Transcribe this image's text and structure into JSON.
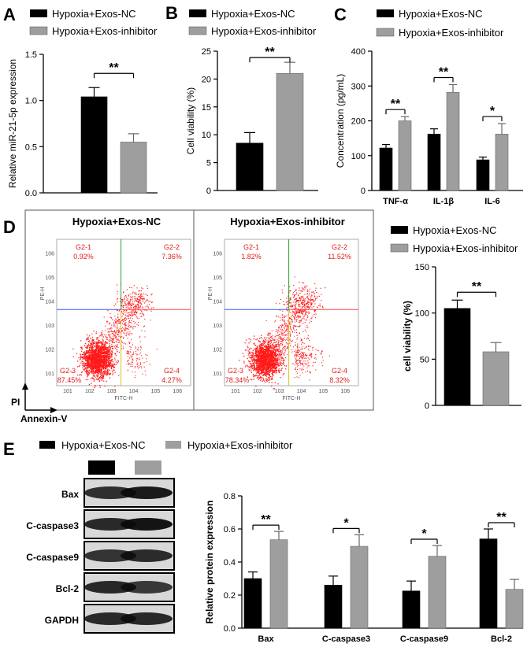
{
  "colors": {
    "nc": "#000000",
    "inhibitor": "#9e9e9e",
    "dot": "#ff1a1a",
    "gate_green": "#2ca02c",
    "gate_blue": "#3355ff",
    "gate_red": "#ff4444",
    "gate_yellow": "#d9c02a"
  },
  "panels": {
    "a": "A",
    "b": "B",
    "c": "C",
    "d": "D",
    "e": "E"
  },
  "legend": {
    "nc": "Hypoxia+Exos-NC",
    "inhibitor": "Hypoxia+Exos-inhibitor"
  },
  "flow": {
    "nc": {
      "title": "Hypoxia+Exos-NC",
      "q1": "G2-1",
      "q1v": "0.92%",
      "q2": "G2-2",
      "q2v": "7.36%",
      "q3": "G2-3",
      "q3v": "87.45%",
      "q4": "G2-4",
      "q4v": "4.27%"
    },
    "inhibitor": {
      "title": "Hypoxia+Exos-inhibitor",
      "q1": "G2-1",
      "q1v": "1.82%",
      "q2": "G2-2",
      "q2v": "11.52%",
      "q3": "G2-3",
      "q3v": "78.34%",
      "q4": "G2-4",
      "q4v": "8.32%"
    },
    "ylab": "PE-H",
    "xlab": "FITC-H",
    "ticks": [
      "10",
      "1",
      "2",
      "3",
      "4",
      "5",
      "6"
    ],
    "axis_pi": "PI",
    "axis_annexin": "Annexin-V"
  },
  "blot": {
    "labels": [
      "Bax",
      "C-caspase3",
      "C-caspase9",
      "Bcl-2",
      "GAPDH"
    ]
  },
  "chart_data": [
    {
      "id": "A",
      "type": "bar",
      "title": "",
      "xlabel": "",
      "ylabel": "Relative miR-21-5p expression",
      "ylim": [
        0,
        1.5
      ],
      "yticks": [
        "0.0",
        "0.5",
        "1.0",
        "1.5"
      ],
      "series": [
        {
          "name": "Hypoxia+Exos-NC",
          "values": [
            1.04
          ],
          "errors": [
            0.1
          ]
        },
        {
          "name": "Hypoxia+Exos-inhibitor",
          "values": [
            0.55
          ],
          "errors": [
            0.09
          ]
        }
      ],
      "significance": [
        "**"
      ]
    },
    {
      "id": "B",
      "type": "bar",
      "title": "",
      "xlabel": "",
      "ylabel": "Cell viability (%)",
      "ylim": [
        0,
        25
      ],
      "yticks": [
        "0",
        "5",
        "10",
        "15",
        "20",
        "25"
      ],
      "series": [
        {
          "name": "Hypoxia+Exos-NC",
          "values": [
            8.5
          ],
          "errors": [
            1.9
          ]
        },
        {
          "name": "Hypoxia+Exos-inhibitor",
          "values": [
            21.0
          ],
          "errors": [
            2.0
          ]
        }
      ],
      "significance": [
        "**"
      ]
    },
    {
      "id": "C",
      "type": "bar",
      "title": "",
      "xlabel": "",
      "ylabel": "Concentration (pg/mL)",
      "ylim": [
        0,
        400
      ],
      "yticks": [
        "0",
        "100",
        "200",
        "300",
        "400"
      ],
      "categories": [
        "TNF-α",
        "IL-1β",
        "IL-6"
      ],
      "series": [
        {
          "name": "Hypoxia+Exos-NC",
          "values": [
            122,
            162,
            88
          ],
          "errors": [
            10,
            15,
            8
          ]
        },
        {
          "name": "Hypoxia+Exos-inhibitor",
          "values": [
            200,
            282,
            162
          ],
          "errors": [
            12,
            22,
            30
          ]
        }
      ],
      "significance": [
        "**",
        "**",
        "*"
      ]
    },
    {
      "id": "D",
      "type": "bar",
      "title": "",
      "xlabel": "",
      "ylabel": "cell viability (%)",
      "ylim": [
        0,
        150
      ],
      "yticks": [
        "0",
        "50",
        "100",
        "150"
      ],
      "series": [
        {
          "name": "Hypoxia+Exos-NC",
          "values": [
            105
          ],
          "errors": [
            9
          ]
        },
        {
          "name": "Hypoxia+Exos-inhibitor",
          "values": [
            58
          ],
          "errors": [
            10
          ]
        }
      ],
      "significance": [
        "**"
      ]
    },
    {
      "id": "E",
      "type": "bar",
      "title": "",
      "xlabel": "",
      "ylabel": "Relative protein expression",
      "ylim": [
        0,
        0.8
      ],
      "yticks": [
        "0.0",
        "0.2",
        "0.4",
        "0.6",
        "0.8"
      ],
      "categories": [
        "Bax",
        "C-caspase3",
        "C-caspase9",
        "Bcl-2"
      ],
      "series": [
        {
          "name": "Hypoxia+Exos-NC",
          "values": [
            0.3,
            0.26,
            0.225,
            0.54
          ],
          "errors": [
            0.04,
            0.055,
            0.06,
            0.06
          ]
        },
        {
          "name": "Hypoxia+Exos-inhibitor",
          "values": [
            0.535,
            0.495,
            0.435,
            0.235
          ],
          "errors": [
            0.05,
            0.07,
            0.065,
            0.06
          ]
        }
      ],
      "significance": [
        "**",
        "*",
        "*",
        "**"
      ]
    }
  ]
}
